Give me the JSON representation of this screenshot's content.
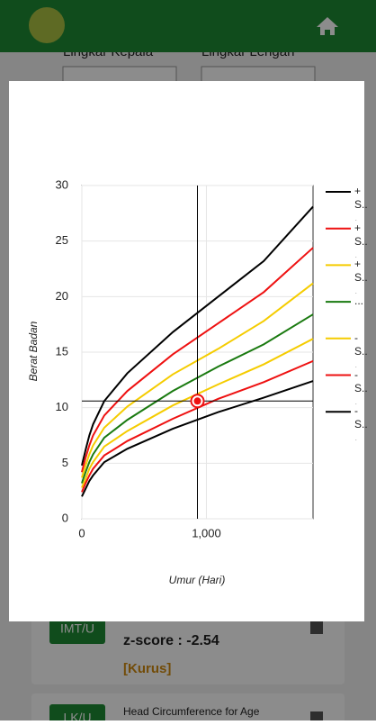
{
  "form": {
    "fields": [
      "Lingkar Kepala",
      "Lingkar Lengan"
    ]
  },
  "cards": [
    {
      "badge": "IMT/U",
      "zscore": "z-score : -2.54",
      "status": "[Kurus]"
    },
    {
      "badge": "LK/U",
      "title": "Head Circumference for Age"
    }
  ],
  "chart_data": {
    "type": "line",
    "x_label": "Umur (Hari)",
    "y_label": "Berat Badan",
    "x": [
      0,
      30,
      60,
      90,
      180,
      365,
      730,
      1095,
      1460,
      1856
    ],
    "series": [
      {
        "name": "+ S...",
        "color": "#000000",
        "values": [
          4.8,
          6.2,
          7.5,
          8.5,
          10.6,
          13.1,
          16.8,
          20.0,
          23.2,
          28.1
        ]
      },
      {
        "name": "+ S...",
        "color": "#ee1111",
        "values": [
          4.2,
          5.5,
          6.6,
          7.5,
          9.3,
          11.5,
          14.8,
          17.6,
          20.4,
          24.4
        ]
      },
      {
        "name": "+ S...",
        "color": "#f5cc00",
        "values": [
          3.7,
          4.8,
          5.8,
          6.6,
          8.2,
          10.1,
          13.0,
          15.3,
          17.8,
          21.2
        ]
      },
      {
        "name": "...",
        "color": "#1a7a10",
        "values": [
          3.2,
          4.2,
          5.1,
          5.8,
          7.3,
          8.9,
          11.5,
          13.7,
          15.7,
          18.4
        ]
      },
      {
        "name": "- S...",
        "color": "#f5cc00",
        "values": [
          2.8,
          3.6,
          4.5,
          5.1,
          6.5,
          7.9,
          10.2,
          12.1,
          13.9,
          16.2
        ]
      },
      {
        "name": "- S...",
        "color": "#ee1111",
        "values": [
          2.4,
          3.2,
          3.9,
          4.5,
          5.7,
          7.0,
          9.0,
          10.8,
          12.3,
          14.2
        ]
      },
      {
        "name": "- S...",
        "color": "#000000",
        "values": [
          2.0,
          2.7,
          3.4,
          3.9,
          5.1,
          6.3,
          8.1,
          9.6,
          10.9,
          12.4
        ]
      }
    ],
    "point": {
      "x": 928,
      "y": 10.6,
      "color": "#ee1111"
    },
    "xlim": [
      0,
      1856
    ],
    "ylim": [
      0,
      30
    ],
    "xticks": [
      0,
      {
        "value": 1000,
        "label": "1,000"
      }
    ],
    "yticks": [
      0,
      5,
      10,
      15,
      20,
      25,
      30
    ],
    "grid": true,
    "legend": "right"
  }
}
